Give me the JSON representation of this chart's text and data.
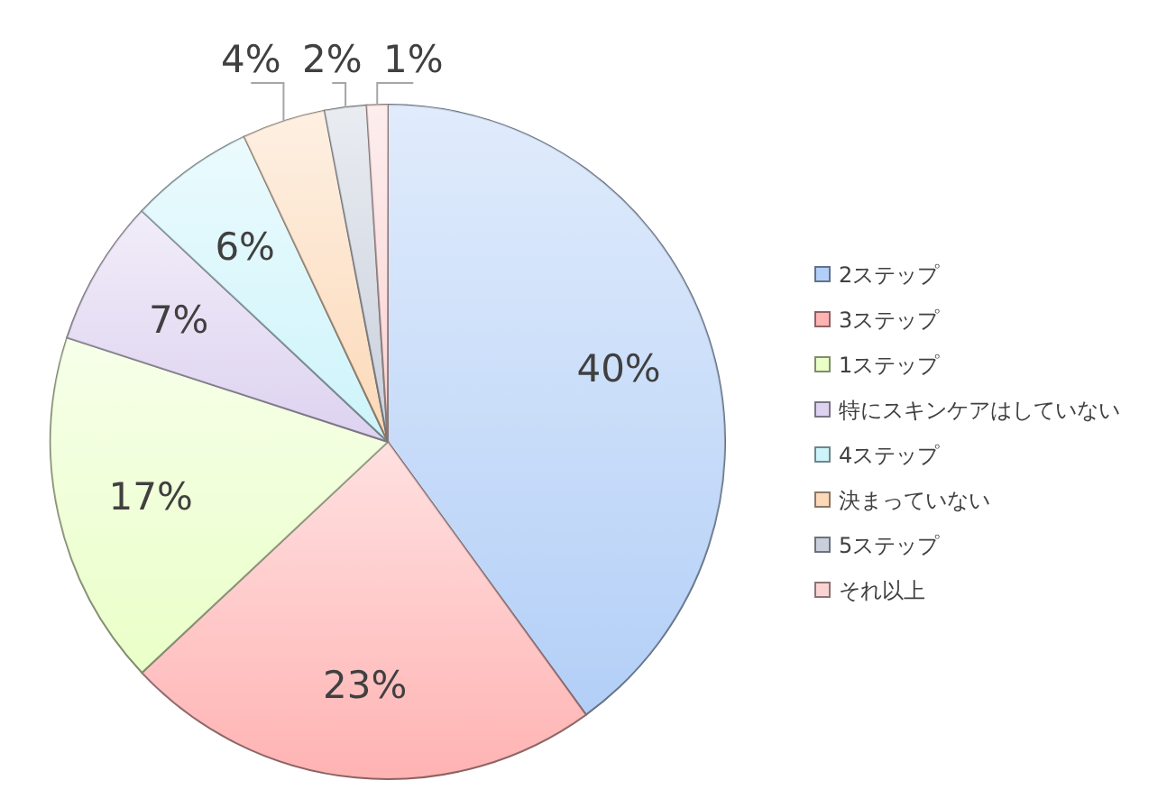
{
  "chart_data": {
    "type": "pie",
    "categories": [
      "2ステップ",
      "3ステップ",
      "1ステップ",
      "特にスキンケアはしていない",
      "4ステップ",
      "決まっていない",
      "5ステップ",
      "それ以上"
    ],
    "values": [
      40,
      23,
      17,
      7,
      6,
      4,
      2,
      1
    ],
    "value_labels": [
      "40%",
      "23%",
      "17%",
      "7%",
      "6%",
      "4%",
      "2%",
      "1%"
    ],
    "colors": [
      "#b3cff7",
      "#ffb3b3",
      "#eaffc8",
      "#ddd2f0",
      "#cdf4fb",
      "#fcd9b8",
      "#c9d0dc",
      "#fbd3d3"
    ],
    "legend": "right"
  }
}
